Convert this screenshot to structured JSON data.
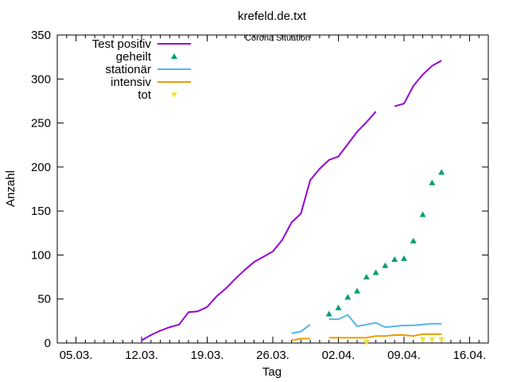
{
  "chart_data": {
    "type": "line",
    "title": "krefeld.de.txt",
    "subtitle": "Corona Situation",
    "xlabel": "Tag",
    "ylabel": "Anzahl",
    "x_ticks": [
      {
        "day": 0,
        "label": "05.03."
      },
      {
        "day": 7,
        "label": "12.03."
      },
      {
        "day": 14,
        "label": "19.03."
      },
      {
        "day": 21,
        "label": "26.03."
      },
      {
        "day": 28,
        "label": "02.04."
      },
      {
        "day": 35,
        "label": "09.04."
      },
      {
        "day": 42,
        "label": "16.04."
      }
    ],
    "xlim": [
      -2,
      44
    ],
    "ylim": [
      0,
      350
    ],
    "y_ticks": [
      0,
      50,
      100,
      150,
      200,
      250,
      300,
      350
    ],
    "grid": false,
    "legend_position": "top-left",
    "series": [
      {
        "name": "Test positiv",
        "style": "line",
        "color": "#9400d3",
        "points": [
          [
            7,
            3
          ],
          [
            8,
            9
          ],
          [
            9,
            14
          ],
          [
            10,
            18
          ],
          [
            11,
            21
          ],
          [
            12,
            35
          ],
          [
            13,
            36
          ],
          [
            14,
            41
          ],
          [
            15,
            53
          ],
          [
            16,
            62
          ],
          [
            17,
            73
          ],
          [
            18,
            83
          ],
          [
            19,
            92
          ],
          [
            20,
            98
          ],
          [
            21,
            104
          ],
          [
            22,
            117
          ],
          [
            23,
            137
          ],
          [
            24,
            147
          ],
          [
            25,
            185
          ],
          [
            26,
            198
          ],
          [
            27,
            208
          ],
          [
            28,
            212
          ],
          [
            29,
            226
          ],
          [
            30,
            240
          ],
          [
            31,
            251
          ],
          [
            32,
            263
          ],
          null,
          [
            34,
            269
          ],
          [
            35,
            272
          ],
          [
            36,
            292
          ],
          [
            37,
            305
          ],
          [
            38,
            315
          ],
          [
            39,
            321
          ]
        ]
      },
      {
        "name": "geheilt",
        "style": "triangle-up",
        "color": "#009e73",
        "points": [
          [
            27,
            33
          ],
          [
            28,
            40
          ],
          [
            29,
            52
          ],
          [
            30,
            59
          ],
          [
            31,
            75
          ],
          [
            32,
            80
          ],
          [
            33,
            88
          ],
          [
            34,
            95
          ],
          [
            35,
            96
          ],
          [
            36,
            116
          ],
          [
            37,
            146
          ],
          [
            38,
            182
          ],
          [
            39,
            194
          ]
        ]
      },
      {
        "name": "stationär",
        "style": "line",
        "color": "#56b4e9",
        "points": [
          [
            23,
            11
          ],
          [
            24,
            13
          ],
          [
            25,
            21
          ],
          null,
          [
            27,
            27
          ],
          [
            28,
            27
          ],
          [
            29,
            32
          ],
          [
            30,
            19
          ],
          [
            31,
            21
          ],
          [
            32,
            23
          ],
          [
            33,
            18
          ],
          [
            34,
            19
          ],
          [
            35,
            20
          ],
          [
            36,
            20
          ],
          [
            37,
            21
          ],
          [
            38,
            22
          ],
          [
            39,
            22
          ]
        ]
      },
      {
        "name": "intensiv",
        "style": "line",
        "color": "#e69f00",
        "points": [
          [
            23,
            3
          ],
          [
            24,
            5
          ],
          [
            25,
            5
          ],
          null,
          [
            27,
            6
          ],
          [
            28,
            6
          ],
          [
            29,
            6
          ],
          [
            30,
            6
          ],
          [
            31,
            6
          ],
          [
            32,
            8
          ],
          [
            33,
            8
          ],
          [
            34,
            9
          ],
          [
            35,
            9
          ],
          [
            36,
            8
          ],
          [
            37,
            10
          ],
          [
            38,
            10
          ],
          [
            39,
            10
          ]
        ]
      },
      {
        "name": "tot",
        "style": "triangle-down",
        "color": "#f0e442",
        "points": [
          [
            31,
            1
          ],
          [
            37,
            4
          ],
          [
            38,
            4
          ],
          [
            39,
            4
          ]
        ]
      }
    ]
  }
}
